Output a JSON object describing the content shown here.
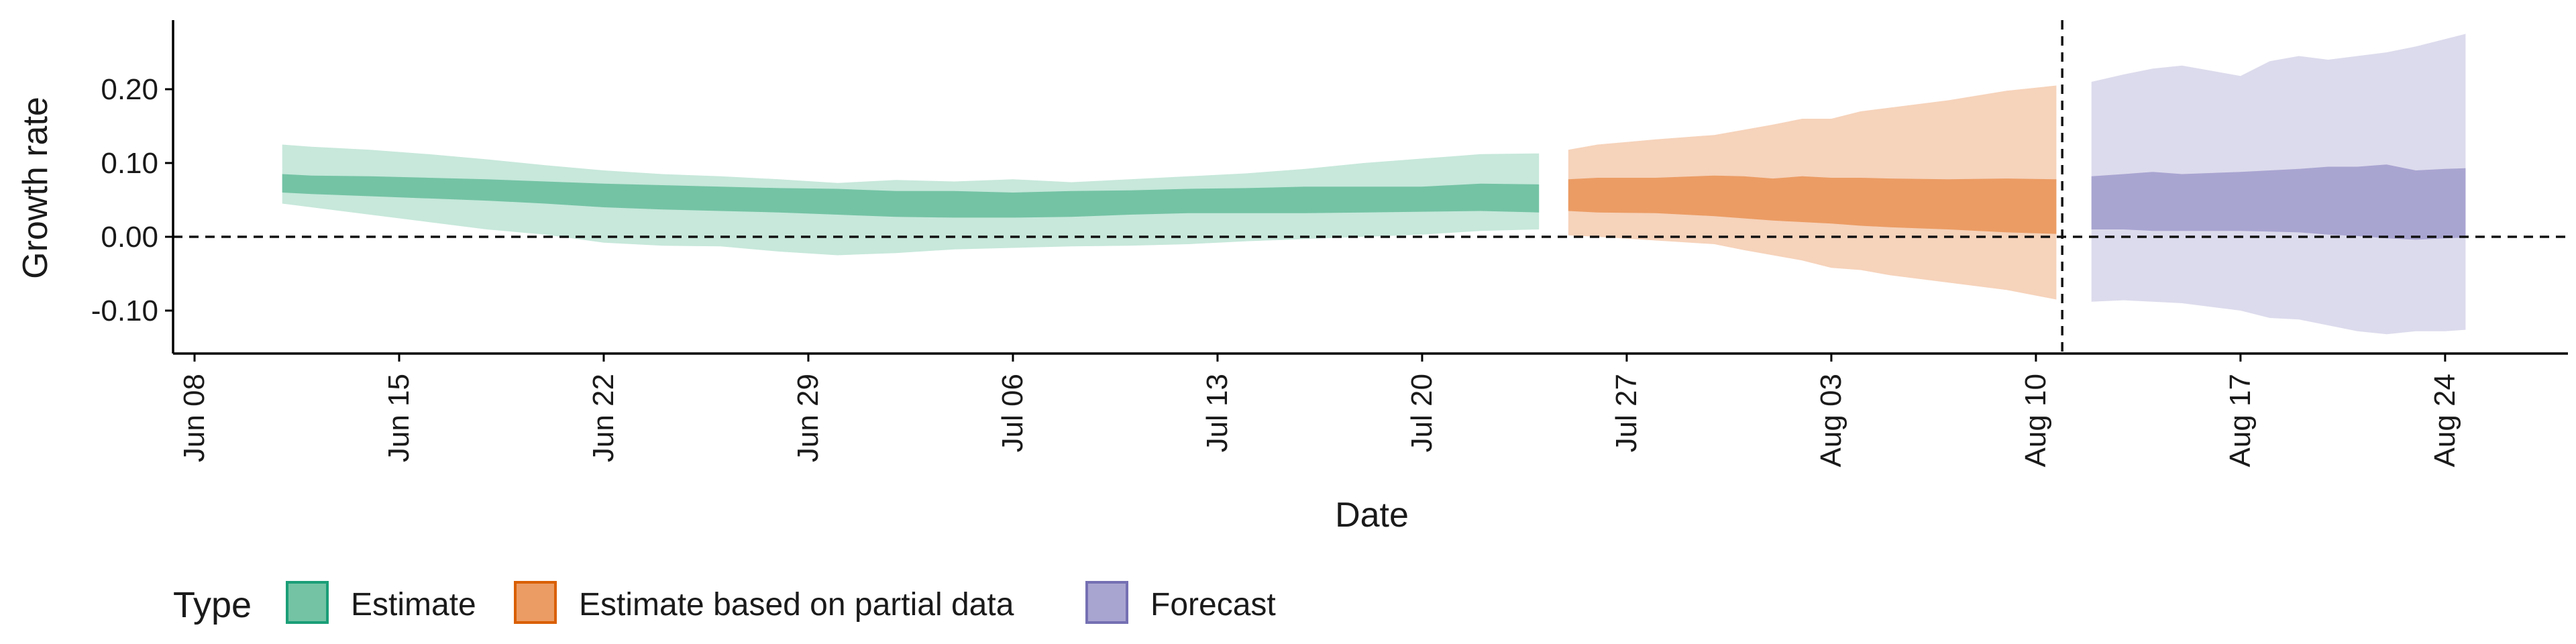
{
  "chart_data": {
    "type": "area",
    "title": "",
    "xlabel": "Date",
    "ylabel": "Growth rate",
    "x_start": "2020-06-08",
    "xlim_days": [
      -0.5,
      78
    ],
    "ylim": [
      -0.16,
      0.29
    ],
    "y_ticks": [
      {
        "value": -0.1,
        "label": "-0.10"
      },
      {
        "value": 0.0,
        "label": "0.00"
      },
      {
        "value": 0.1,
        "label": "0.10"
      },
      {
        "value": 0.2,
        "label": "0.20"
      }
    ],
    "x_ticks": [
      {
        "day": 0,
        "label": "Jun 08"
      },
      {
        "day": 7,
        "label": "Jun 15"
      },
      {
        "day": 14,
        "label": "Jun 22"
      },
      {
        "day": 21,
        "label": "Jun 29"
      },
      {
        "day": 28,
        "label": "Jul 06"
      },
      {
        "day": 35,
        "label": "Jul 13"
      },
      {
        "day": 42,
        "label": "Jul 20"
      },
      {
        "day": 49,
        "label": "Jul 27"
      },
      {
        "day": 56,
        "label": "Aug 03"
      },
      {
        "day": 63,
        "label": "Aug 10"
      },
      {
        "day": 70,
        "label": "Aug 17"
      },
      {
        "day": 77,
        "label": "Aug 24"
      }
    ],
    "reference_lines": {
      "horizontal_y": 0.0,
      "vertical_day": 63.9
    },
    "legend": {
      "title": "Type",
      "position": "bottom-left",
      "items": [
        {
          "name": "Estimate",
          "fill": "#74c3a5",
          "border": "#1b9e77"
        },
        {
          "name": "Estimate based on partial data",
          "fill": "#eb9c64",
          "border": "#d95f02"
        },
        {
          "name": "Forecast",
          "fill": "#a9a5d1",
          "border": "#7570b3"
        }
      ]
    },
    "series": [
      {
        "name": "Estimate",
        "inner_color": "#74c3a5",
        "outer_color": "#c7e8db",
        "days": [
          3,
          4,
          6,
          8,
          10,
          12,
          14,
          16,
          18,
          20,
          22,
          24,
          26,
          28,
          30,
          32,
          34,
          36,
          38,
          40,
          42,
          44,
          46
        ],
        "outer_lo": [
          0.045,
          0.04,
          0.03,
          0.02,
          0.01,
          0.003,
          -0.008,
          -0.012,
          -0.013,
          -0.02,
          -0.025,
          -0.022,
          -0.017,
          -0.015,
          -0.013,
          -0.012,
          -0.01,
          -0.006,
          -0.003,
          0.0,
          0.003,
          0.008,
          0.01
        ],
        "outer_hi": [
          0.125,
          0.122,
          0.118,
          0.112,
          0.105,
          0.097,
          0.09,
          0.085,
          0.082,
          0.078,
          0.073,
          0.077,
          0.075,
          0.078,
          0.074,
          0.078,
          0.082,
          0.086,
          0.092,
          0.1,
          0.106,
          0.112,
          0.113
        ],
        "inner_lo": [
          0.06,
          0.058,
          0.055,
          0.052,
          0.049,
          0.045,
          0.04,
          0.037,
          0.035,
          0.033,
          0.03,
          0.027,
          0.026,
          0.026,
          0.027,
          0.03,
          0.032,
          0.032,
          0.032,
          0.033,
          0.034,
          0.035,
          0.033
        ],
        "inner_hi": [
          0.085,
          0.083,
          0.082,
          0.08,
          0.078,
          0.075,
          0.072,
          0.07,
          0.068,
          0.066,
          0.065,
          0.062,
          0.062,
          0.06,
          0.062,
          0.063,
          0.065,
          0.066,
          0.068,
          0.068,
          0.068,
          0.072,
          0.071
        ]
      },
      {
        "name": "Estimate based on partial data",
        "inner_color": "#eb9c64",
        "outer_color": "#f6d3bb",
        "days": [
          47,
          48,
          50,
          52,
          53,
          54,
          55,
          56,
          57,
          58,
          60,
          62,
          63.7
        ],
        "outer_lo": [
          0.002,
          0.0,
          -0.005,
          -0.01,
          -0.018,
          -0.025,
          -0.032,
          -0.042,
          -0.045,
          -0.052,
          -0.062,
          -0.072,
          -0.085
        ],
        "outer_hi": [
          0.118,
          0.125,
          0.132,
          0.138,
          0.145,
          0.152,
          0.16,
          0.16,
          0.17,
          0.175,
          0.185,
          0.198,
          0.205
        ],
        "inner_lo": [
          0.035,
          0.033,
          0.032,
          0.028,
          0.025,
          0.022,
          0.02,
          0.018,
          0.015,
          0.013,
          0.01,
          0.006,
          0.004
        ],
        "inner_hi": [
          0.078,
          0.08,
          0.08,
          0.083,
          0.082,
          0.079,
          0.082,
          0.08,
          0.08,
          0.079,
          0.078,
          0.079,
          0.078
        ]
      },
      {
        "name": "Forecast",
        "inner_color": "#a9a5d1",
        "outer_color": "#dcdbed",
        "days": [
          64.9,
          66,
          67,
          68,
          70,
          71,
          72,
          73,
          74,
          75,
          76,
          77,
          77.7
        ],
        "outer_lo": [
          -0.088,
          -0.086,
          -0.088,
          -0.09,
          -0.1,
          -0.11,
          -0.112,
          -0.12,
          -0.128,
          -0.132,
          -0.128,
          -0.128,
          -0.126
        ],
        "outer_hi": [
          0.21,
          0.22,
          0.228,
          0.232,
          0.218,
          0.238,
          0.245,
          0.24,
          0.245,
          0.25,
          0.258,
          0.268,
          0.275
        ],
        "inner_lo": [
          0.01,
          0.01,
          0.008,
          0.008,
          0.008,
          0.007,
          0.006,
          0.003,
          0.001,
          -0.002,
          -0.004,
          -0.002,
          -0.001
        ],
        "inner_hi": [
          0.082,
          0.085,
          0.088,
          0.085,
          0.088,
          0.09,
          0.092,
          0.095,
          0.095,
          0.098,
          0.09,
          0.092,
          0.093
        ]
      }
    ]
  }
}
